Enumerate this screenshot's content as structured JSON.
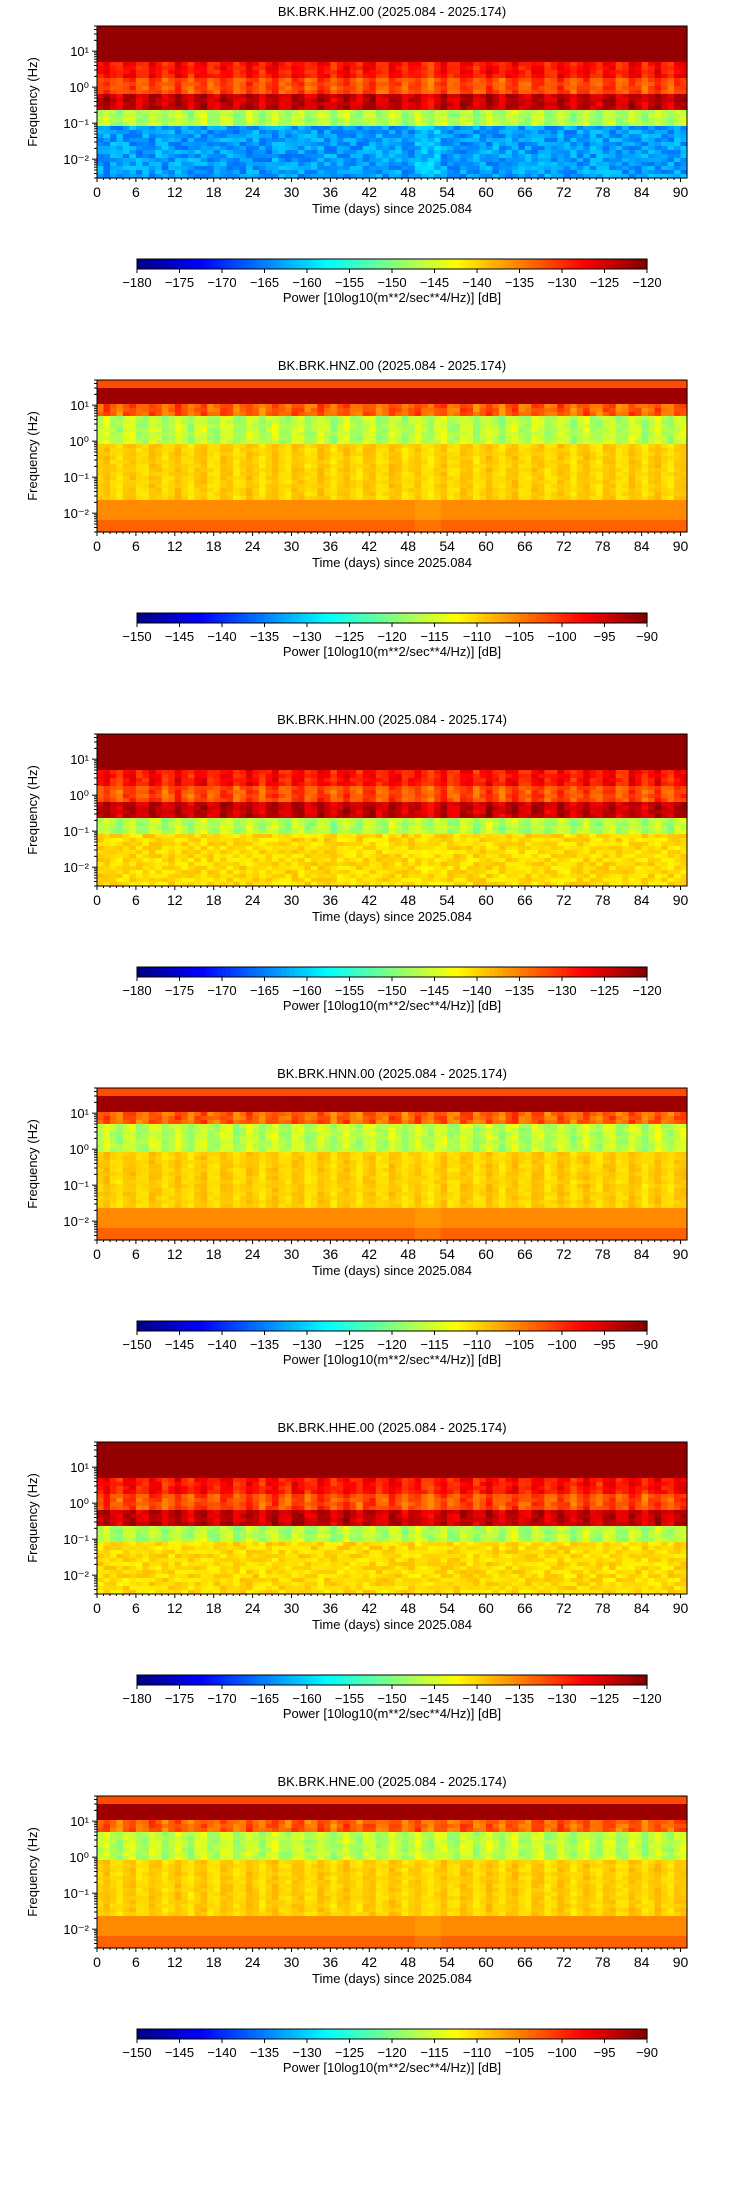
{
  "chart_data": [
    {
      "type": "heatmap",
      "title": "BK.BRK.HHZ.00 (2025.084 - 2025.174)",
      "xlabel": "Time (days) since 2025.084",
      "ylabel": "Frequency (Hz)",
      "xlim": [
        0,
        91
      ],
      "xticks": [
        0,
        6,
        12,
        18,
        24,
        30,
        36,
        42,
        48,
        54,
        60,
        66,
        72,
        78,
        84,
        90
      ],
      "yscale": "log",
      "ylim": [
        0.003,
        50
      ],
      "yticks": [
        "10⁻²",
        "10⁻¹",
        "10⁰",
        "10¹"
      ],
      "profile": "vel",
      "colorbar": {
        "label": "Power [10log10(m**2/sec**4/Hz)] [dB]",
        "range": [
          -180,
          -120
        ],
        "ticks": [
          -180,
          -175,
          -170,
          -165,
          -160,
          -155,
          -150,
          -145,
          -140,
          -135,
          -130,
          -125,
          -120
        ]
      }
    },
    {
      "type": "heatmap",
      "title": "BK.BRK.HNZ.00 (2025.084 - 2025.174)",
      "xlabel": "Time (days) since 2025.084",
      "ylabel": "Frequency (Hz)",
      "xlim": [
        0,
        91
      ],
      "xticks": [
        0,
        6,
        12,
        18,
        24,
        30,
        36,
        42,
        48,
        54,
        60,
        66,
        72,
        78,
        84,
        90
      ],
      "yscale": "log",
      "ylim": [
        0.003,
        50
      ],
      "yticks": [
        "10⁻²",
        "10⁻¹",
        "10⁰",
        "10¹"
      ],
      "profile": "acc",
      "colorbar": {
        "label": "Power [10log10(m**2/sec**4/Hz)] [dB]",
        "range": [
          -150,
          -90
        ],
        "ticks": [
          -150,
          -145,
          -140,
          -135,
          -130,
          -125,
          -120,
          -115,
          -110,
          -105,
          -100,
          -95,
          -90
        ]
      }
    },
    {
      "type": "heatmap",
      "title": "BK.BRK.HHN.00 (2025.084 - 2025.174)",
      "xlabel": "Time (days) since 2025.084",
      "ylabel": "Frequency (Hz)",
      "xlim": [
        0,
        91
      ],
      "xticks": [
        0,
        6,
        12,
        18,
        24,
        30,
        36,
        42,
        48,
        54,
        60,
        66,
        72,
        78,
        84,
        90
      ],
      "yscale": "log",
      "ylim": [
        0.003,
        50
      ],
      "yticks": [
        "10⁻²",
        "10⁻¹",
        "10⁰",
        "10¹"
      ],
      "profile": "velh",
      "colorbar": {
        "label": "Power [10log10(m**2/sec**4/Hz)] [dB]",
        "range": [
          -180,
          -120
        ],
        "ticks": [
          -180,
          -175,
          -170,
          -165,
          -160,
          -155,
          -150,
          -145,
          -140,
          -135,
          -130,
          -125,
          -120
        ]
      }
    },
    {
      "type": "heatmap",
      "title": "BK.BRK.HNN.00 (2025.084 - 2025.174)",
      "xlabel": "Time (days) since 2025.084",
      "ylabel": "Frequency (Hz)",
      "xlim": [
        0,
        91
      ],
      "xticks": [
        0,
        6,
        12,
        18,
        24,
        30,
        36,
        42,
        48,
        54,
        60,
        66,
        72,
        78,
        84,
        90
      ],
      "yscale": "log",
      "ylim": [
        0.003,
        50
      ],
      "yticks": [
        "10⁻²",
        "10⁻¹",
        "10⁰",
        "10¹"
      ],
      "profile": "acc",
      "colorbar": {
        "label": "Power [10log10(m**2/sec**4/Hz)] [dB]",
        "range": [
          -150,
          -90
        ],
        "ticks": [
          -150,
          -145,
          -140,
          -135,
          -130,
          -125,
          -120,
          -115,
          -110,
          -105,
          -100,
          -95,
          -90
        ]
      }
    },
    {
      "type": "heatmap",
      "title": "BK.BRK.HHE.00 (2025.084 - 2025.174)",
      "xlabel": "Time (days) since 2025.084",
      "ylabel": "Frequency (Hz)",
      "xlim": [
        0,
        91
      ],
      "xticks": [
        0,
        6,
        12,
        18,
        24,
        30,
        36,
        42,
        48,
        54,
        60,
        66,
        72,
        78,
        84,
        90
      ],
      "yscale": "log",
      "ylim": [
        0.003,
        50
      ],
      "yticks": [
        "10⁻²",
        "10⁻¹",
        "10⁰",
        "10¹"
      ],
      "profile": "velh",
      "colorbar": {
        "label": "Power [10log10(m**2/sec**4/Hz)] [dB]",
        "range": [
          -180,
          -120
        ],
        "ticks": [
          -180,
          -175,
          -170,
          -165,
          -160,
          -155,
          -150,
          -145,
          -140,
          -135,
          -130,
          -125,
          -120
        ]
      }
    },
    {
      "type": "heatmap",
      "title": "BK.BRK.HNE.00 (2025.084 - 2025.174)",
      "xlabel": "Time (days) since 2025.084",
      "ylabel": "Frequency (Hz)",
      "xlim": [
        0,
        91
      ],
      "xticks": [
        0,
        6,
        12,
        18,
        24,
        30,
        36,
        42,
        48,
        54,
        60,
        66,
        72,
        78,
        84,
        90
      ],
      "yscale": "log",
      "ylim": [
        0.003,
        50
      ],
      "yticks": [
        "10⁻²",
        "10⁻¹",
        "10⁰",
        "10¹"
      ],
      "profile": "acc",
      "colorbar": {
        "label": "Power [10log10(m**2/sec**4/Hz)] [dB]",
        "range": [
          -150,
          -90
        ],
        "ticks": [
          -150,
          -145,
          -140,
          -135,
          -130,
          -125,
          -120,
          -115,
          -110,
          -105,
          -100,
          -95,
          -90
        ]
      }
    }
  ]
}
